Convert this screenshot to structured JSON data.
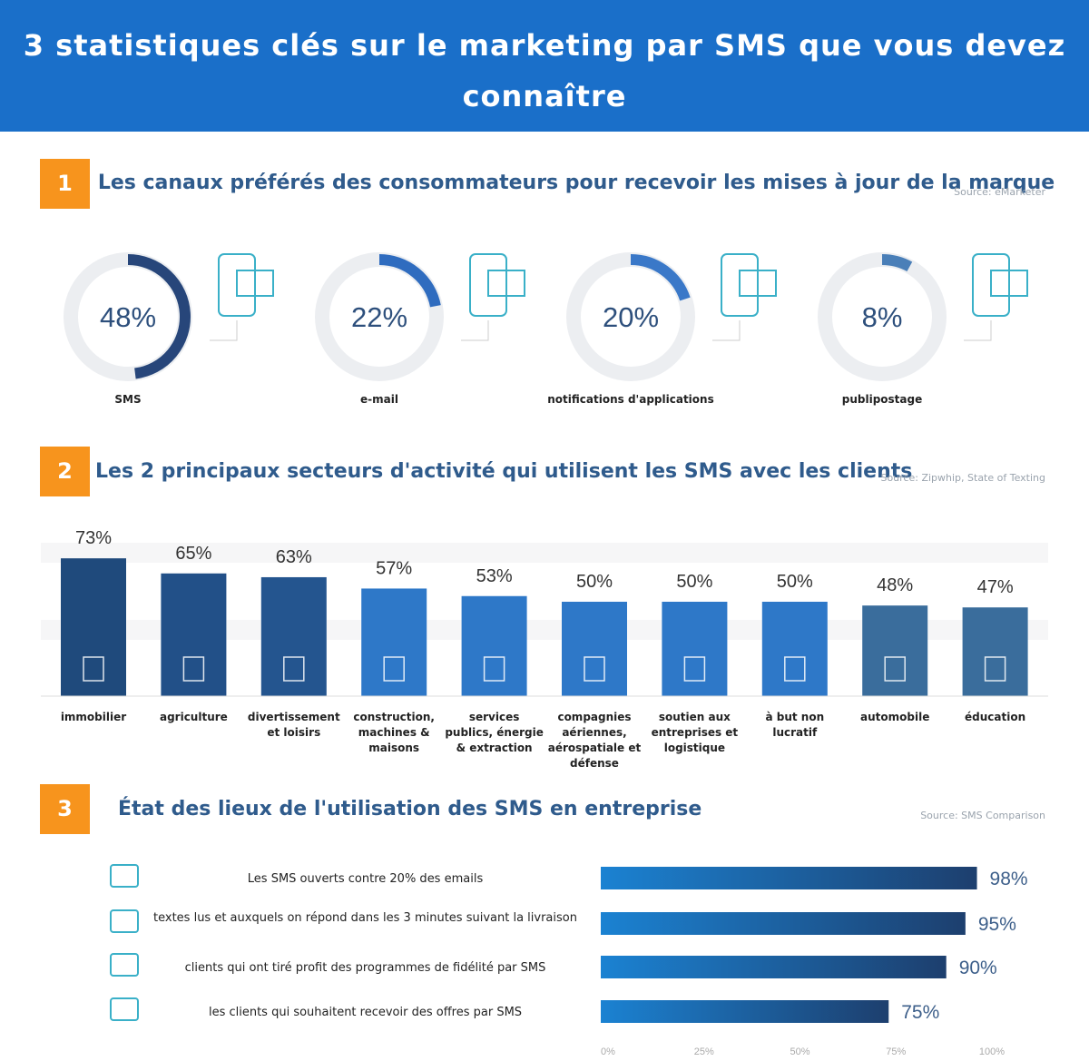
{
  "header": {
    "title": "3 statistiques clés sur le marketing par SMS que vous devez connaître"
  },
  "chart_data": [
    {
      "type": "donut",
      "number": "1",
      "title": "Les canaux préférés des consommateurs pour recevoir les mises à jour de la marque",
      "source": "Source: eMarketer",
      "categories": [
        "SMS",
        "e-mail",
        "notifications d'applications",
        "publipostage"
      ],
      "values": [
        48,
        22,
        20,
        8
      ],
      "value_labels": [
        "48%",
        "22%",
        "20%",
        "8%"
      ],
      "colors": [
        "#27467a",
        "#2f6cbf",
        "#3a78c8",
        "#4a7fb8"
      ],
      "track_color": "#eceef1"
    },
    {
      "type": "bar",
      "number": "2",
      "title": "Les 2 principaux secteurs d'activité qui utilisent les SMS avec les clients",
      "source": "Source: Zipwhip, State of Texting",
      "categories": [
        "immobilier",
        "agriculture",
        "divertissement et loisirs",
        "construction, machines & maisons",
        "services publics, énergie & extraction",
        "compagnies aériennes, aérospatiale et défense",
        "soutien aux entreprises et logistique",
        "à but non lucratif",
        "automobile",
        "éducation"
      ],
      "values": [
        73,
        65,
        63,
        57,
        53,
        50,
        50,
        50,
        48,
        47
      ],
      "value_labels": [
        "73%",
        "65%",
        "63%",
        "57%",
        "53%",
        "50%",
        "50%",
        "50%",
        "48%",
        "47%"
      ],
      "colors": [
        "#1f4a7c",
        "#225088",
        "#24558f",
        "#2e78c8",
        "#2e78c8",
        "#2e78c8",
        "#2e78c8",
        "#2e78c8",
        "#3a6d9c",
        "#3a6d9c"
      ]
    },
    {
      "type": "hbar",
      "number": "3",
      "title": "État des lieux de l'utilisation des SMS en entreprise",
      "source": "Source: SMS Comparison",
      "categories": [
        "Les SMS ouverts contre 20% des emails",
        "textes lus et auxquels on répond dans les 3 minutes suivant la livraison",
        "clients qui ont tiré profit des programmes de fidélité par SMS",
        "les clients qui souhaitent recevoir des offres par SMS"
      ],
      "values": [
        98,
        95,
        90,
        75
      ],
      "value_labels": [
        "98%",
        "95%",
        "90%",
        "75%"
      ],
      "colors": [
        "#1b82d2",
        "#1d3f6e"
      ],
      "xlim": [
        0,
        100
      ],
      "xticks": [
        {
          "value": 0,
          "label": "0%"
        },
        {
          "value": 25,
          "label": "25%"
        },
        {
          "value": 50,
          "label": "50%"
        },
        {
          "value": 75,
          "label": "75%"
        },
        {
          "value": 100,
          "label": "100%"
        }
      ]
    }
  ]
}
